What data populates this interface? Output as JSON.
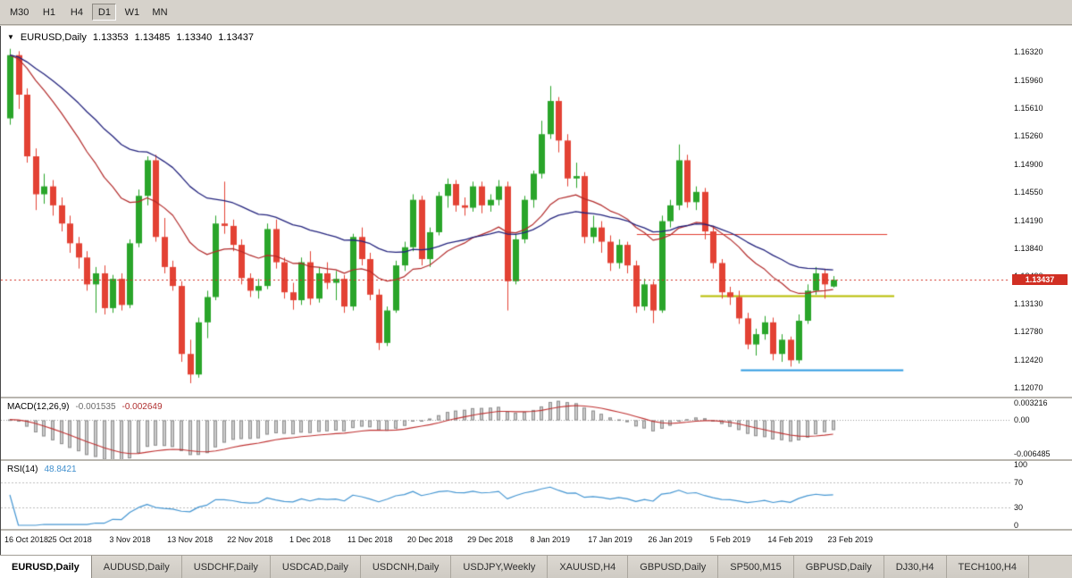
{
  "toolbar": {
    "timeframes": [
      {
        "label": "M30",
        "active": false
      },
      {
        "label": "H1",
        "active": false
      },
      {
        "label": "H4",
        "active": false
      },
      {
        "label": "D1",
        "active": true
      },
      {
        "label": "W1",
        "active": false
      },
      {
        "label": "MN",
        "active": false
      }
    ]
  },
  "chart": {
    "header": {
      "symbol": "EURUSD,Daily",
      "open": "1.13353",
      "high": "1.13485",
      "low": "1.13340",
      "close": "1.13437"
    },
    "current_price": "1.13437"
  },
  "chart_data": {
    "type": "candlestick",
    "symbol": "EURUSD",
    "timeframe": "Daily",
    "main": {
      "price_range": [
        1.1196,
        1.1665
      ],
      "axis_ticks": [
        "1.16320",
        "1.15960",
        "1.15610",
        "1.15260",
        "1.14900",
        "1.14550",
        "1.14190",
        "1.13840",
        "1.13490",
        "1.13130",
        "1.12780",
        "1.12420",
        "1.12070"
      ],
      "current_price": 1.13437,
      "last_bar_ohlc": {
        "open": 1.13353,
        "high": 1.13485,
        "low": 1.1334,
        "close": 1.13437
      },
      "colors": {
        "up": "#2aa52a",
        "down": "#e34234",
        "badge": "#d12f23"
      },
      "moving_averages": [
        {
          "name": "ma-fast-red",
          "type": "ema",
          "period": 20,
          "color": "#b22a2a"
        },
        {
          "name": "ma-slow-navy",
          "type": "ema",
          "period": 40,
          "color": "#23237d"
        }
      ],
      "hlines": [
        {
          "name": "resistance-red",
          "price": 1.1402,
          "color": "#e03a2c",
          "width": 1,
          "from": 0.63,
          "to": 0.878
        },
        {
          "name": "level-yellow",
          "price": 1.1324,
          "color": "#b7bd00",
          "width": 2,
          "from": 0.693,
          "to": 0.885
        },
        {
          "name": "support-blue",
          "price": 1.123,
          "color": "#2f9be0",
          "width": 2,
          "from": 0.733,
          "to": 0.894
        }
      ],
      "candles": [
        [
          1.1548,
          1.1636,
          1.154,
          1.1628
        ],
        [
          1.1628,
          1.1633,
          1.156,
          1.1578
        ],
        [
          1.1578,
          1.1586,
          1.1492,
          1.15
        ],
        [
          1.15,
          1.151,
          1.1432,
          1.1452
        ],
        [
          1.1452,
          1.1478,
          1.144,
          1.1462
        ],
        [
          1.1462,
          1.147,
          1.1425,
          1.1438
        ],
        [
          1.1438,
          1.1448,
          1.1405,
          1.1415
        ],
        [
          1.1415,
          1.1425,
          1.1378,
          1.139
        ],
        [
          1.139,
          1.1398,
          1.1358,
          1.1372
        ],
        [
          1.1372,
          1.138,
          1.133,
          1.1338
        ],
        [
          1.1338,
          1.136,
          1.1302,
          1.1352
        ],
        [
          1.1352,
          1.1362,
          1.13,
          1.1308
        ],
        [
          1.1308,
          1.135,
          1.1302,
          1.1345
        ],
        [
          1.1345,
          1.1352,
          1.1305,
          1.1312
        ],
        [
          1.1312,
          1.1395,
          1.1308,
          1.139
        ],
        [
          1.139,
          1.1458,
          1.1385,
          1.145
        ],
        [
          1.145,
          1.15,
          1.1438,
          1.1495
        ],
        [
          1.1495,
          1.1502,
          1.1392,
          1.1398
        ],
        [
          1.1398,
          1.1422,
          1.1352,
          1.136
        ],
        [
          1.136,
          1.1368,
          1.133,
          1.1336
        ],
        [
          1.1336,
          1.1342,
          1.124,
          1.125
        ],
        [
          1.125,
          1.1268,
          1.1213,
          1.1224
        ],
        [
          1.1224,
          1.1296,
          1.122,
          1.129
        ],
        [
          1.129,
          1.133,
          1.127,
          1.1322
        ],
        [
          1.1322,
          1.1425,
          1.1318,
          1.1415
        ],
        [
          1.1415,
          1.1468,
          1.1402,
          1.1412
        ],
        [
          1.1412,
          1.142,
          1.138,
          1.1388
        ],
        [
          1.1388,
          1.1395,
          1.1338,
          1.1346
        ],
        [
          1.1346,
          1.1352,
          1.1322,
          1.133
        ],
        [
          1.133,
          1.1345,
          1.132,
          1.1336
        ],
        [
          1.1336,
          1.1415,
          1.1332,
          1.1408
        ],
        [
          1.1408,
          1.142,
          1.1358,
          1.1366
        ],
        [
          1.1366,
          1.1372,
          1.132,
          1.1328
        ],
        [
          1.1328,
          1.134,
          1.1306,
          1.1318
        ],
        [
          1.1318,
          1.1372,
          1.1312,
          1.1366
        ],
        [
          1.1366,
          1.138,
          1.1312,
          1.132
        ],
        [
          1.132,
          1.136,
          1.1315,
          1.1352
        ],
        [
          1.1352,
          1.1366,
          1.1332,
          1.134
        ],
        [
          1.134,
          1.1355,
          1.1318,
          1.1345
        ],
        [
          1.1345,
          1.135,
          1.1302,
          1.131
        ],
        [
          1.131,
          1.1402,
          1.1305,
          1.1398
        ],
        [
          1.1398,
          1.141,
          1.1362,
          1.137
        ],
        [
          1.137,
          1.1378,
          1.1318,
          1.1325
        ],
        [
          1.1325,
          1.1332,
          1.1255,
          1.1264
        ],
        [
          1.1264,
          1.131,
          1.126,
          1.1305
        ],
        [
          1.1305,
          1.1368,
          1.1302,
          1.1362
        ],
        [
          1.1362,
          1.1392,
          1.1355,
          1.1385
        ],
        [
          1.1385,
          1.1452,
          1.138,
          1.1445
        ],
        [
          1.1445,
          1.145,
          1.1362,
          1.137
        ],
        [
          1.137,
          1.141,
          1.136,
          1.1404
        ],
        [
          1.1404,
          1.1455,
          1.14,
          1.145
        ],
        [
          1.145,
          1.1472,
          1.1435,
          1.1465
        ],
        [
          1.1465,
          1.147,
          1.143,
          1.1438
        ],
        [
          1.1438,
          1.1448,
          1.1425,
          1.1435
        ],
        [
          1.1435,
          1.1468,
          1.143,
          1.1462
        ],
        [
          1.1462,
          1.1468,
          1.1428,
          1.1438
        ],
        [
          1.1438,
          1.1452,
          1.143,
          1.1445
        ],
        [
          1.1445,
          1.147,
          1.1438,
          1.1462
        ],
        [
          1.1462,
          1.1468,
          1.1305,
          1.1342
        ],
        [
          1.1342,
          1.1402,
          1.1338,
          1.1395
        ],
        [
          1.1395,
          1.145,
          1.139,
          1.1445
        ],
        [
          1.1445,
          1.1482,
          1.1435,
          1.1478
        ],
        [
          1.1478,
          1.1545,
          1.1472,
          1.1528
        ],
        [
          1.1528,
          1.1589,
          1.1522,
          1.157
        ],
        [
          1.157,
          1.1575,
          1.1505,
          1.152
        ],
        [
          1.152,
          1.1528,
          1.1462,
          1.1472
        ],
        [
          1.1472,
          1.1492,
          1.146,
          1.1475
        ],
        [
          1.1475,
          1.148,
          1.139,
          1.1398
        ],
        [
          1.1398,
          1.1425,
          1.139,
          1.141
        ],
        [
          1.141,
          1.1418,
          1.1378,
          1.1392
        ],
        [
          1.1392,
          1.14,
          1.1355,
          1.1365
        ],
        [
          1.1365,
          1.1395,
          1.1358,
          1.1388
        ],
        [
          1.1388,
          1.1392,
          1.1352,
          1.1362
        ],
        [
          1.1362,
          1.1368,
          1.1302,
          1.131
        ],
        [
          1.131,
          1.1345,
          1.1305,
          1.1338
        ],
        [
          1.1338,
          1.1342,
          1.1289,
          1.1305
        ],
        [
          1.1305,
          1.1425,
          1.1302,
          1.1418
        ],
        [
          1.1418,
          1.1445,
          1.141,
          1.1438
        ],
        [
          1.1438,
          1.1515,
          1.1432,
          1.1495
        ],
        [
          1.1495,
          1.1502,
          1.1435,
          1.1442
        ],
        [
          1.1442,
          1.1462,
          1.1432,
          1.1455
        ],
        [
          1.1455,
          1.146,
          1.1395,
          1.1405
        ],
        [
          1.1405,
          1.1412,
          1.1358,
          1.1365
        ],
        [
          1.1365,
          1.137,
          1.132,
          1.1328
        ],
        [
          1.1328,
          1.1335,
          1.1312,
          1.1322
        ],
        [
          1.1322,
          1.133,
          1.1288,
          1.1295
        ],
        [
          1.1295,
          1.1302,
          1.1256,
          1.1262
        ],
        [
          1.1262,
          1.1282,
          1.1248,
          1.1275
        ],
        [
          1.1275,
          1.1298,
          1.1268,
          1.129
        ],
        [
          1.129,
          1.1296,
          1.1242,
          1.125
        ],
        [
          1.125,
          1.1275,
          1.124,
          1.1268
        ],
        [
          1.1268,
          1.1272,
          1.1234,
          1.1242
        ],
        [
          1.1242,
          1.13,
          1.1238,
          1.1292
        ],
        [
          1.1292,
          1.1338,
          1.1288,
          1.133
        ],
        [
          1.133,
          1.136,
          1.1325,
          1.1352
        ],
        [
          1.1352,
          1.1358,
          1.132,
          1.1338
        ],
        [
          1.13353,
          1.13485,
          1.1334,
          1.13437
        ]
      ]
    },
    "macd": {
      "label": "MACD(12,26,9)",
      "fast": 12,
      "slow": 26,
      "signal": 9,
      "value_main": "-0.001535",
      "value_signal": "-0.002649",
      "axis_ticks": [
        {
          "label": "0.003216",
          "value": 0.003216
        },
        {
          "label": "0.00",
          "value": 0
        },
        {
          "label": "-0.006485",
          "value": -0.006485
        }
      ],
      "range": [
        -0.0075,
        0.004
      ],
      "colors": {
        "hist_fill": "#cccccc",
        "hist_stroke": "#8f8f8f",
        "signal": "#bf3232",
        "zero": "#9a9a9a"
      }
    },
    "rsi": {
      "label": "RSI(14)",
      "period": 14,
      "value": "48.8421",
      "levels": [
        30,
        70
      ],
      "axis_ticks": [
        {
          "label": "100",
          "value": 100
        },
        {
          "label": "70",
          "value": 70
        },
        {
          "label": "30",
          "value": 30
        },
        {
          "label": "0",
          "value": 0
        }
      ],
      "colors": {
        "line": "#4596d2",
        "level": "#bcbcbc"
      }
    },
    "x_axis": {
      "bars_per_label": 7,
      "labels": [
        "16 Oct 2018",
        "25 Oct 2018",
        "3 Nov 2018",
        "13 Nov 2018",
        "22 Nov 2018",
        "1 Dec 2018",
        "11 Dec 2018",
        "20 Dec 2018",
        "29 Dec 2018",
        "8 Jan 2019",
        "17 Jan 2019",
        "26 Jan 2019",
        "5 Feb 2019",
        "14 Feb 2019",
        "23 Feb 2019"
      ]
    }
  },
  "tabs": [
    {
      "label": "EURUSD,Daily",
      "active": true
    },
    {
      "label": "AUDUSD,Daily",
      "active": false
    },
    {
      "label": "USDCHF,Daily",
      "active": false
    },
    {
      "label": "USDCAD,Daily",
      "active": false
    },
    {
      "label": "USDCNH,Daily",
      "active": false
    },
    {
      "label": "USDJPY,Weekly",
      "active": false
    },
    {
      "label": "XAUUSD,H4",
      "active": false
    },
    {
      "label": "GBPUSD,Daily",
      "active": false
    },
    {
      "label": "SP500,M15",
      "active": false
    },
    {
      "label": "GBPUSD,Daily",
      "active": false
    },
    {
      "label": "DJ30,H4",
      "active": false
    },
    {
      "label": "TECH100,H4",
      "active": false
    }
  ]
}
